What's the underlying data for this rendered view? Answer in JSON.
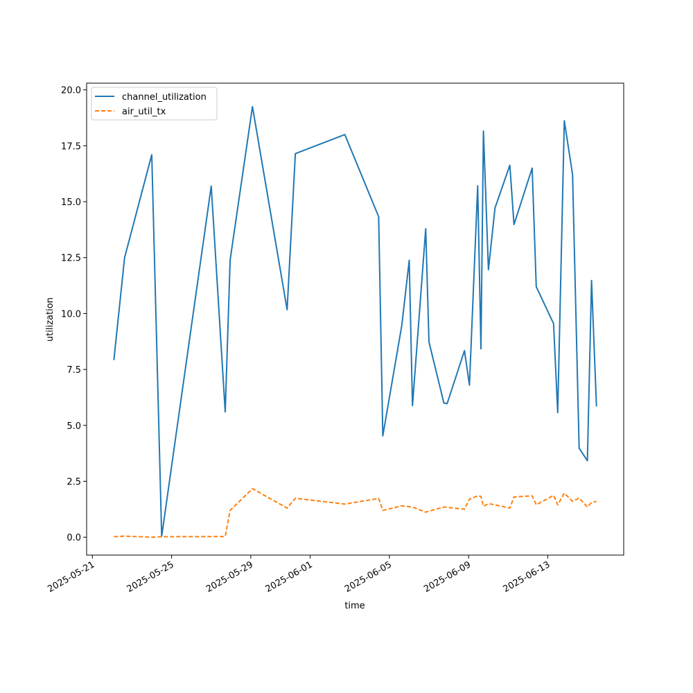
{
  "chart_data": {
    "type": "line",
    "xlabel": "time",
    "ylabel": "utilization",
    "x_axis": {
      "scale": "date",
      "range": [
        "2025-05-20T17:00",
        "2025-06-16T20:00"
      ],
      "ticks": [
        "2025-05-21",
        "2025-05-25",
        "2025-05-29",
        "2025-06-01",
        "2025-06-05",
        "2025-06-09",
        "2025-06-13"
      ]
    },
    "y_axis": {
      "range": [
        -0.8,
        20.3
      ],
      "ticks": [
        "0.0",
        "2.5",
        "5.0",
        "7.5",
        "10.0",
        "12.5",
        "15.0",
        "17.5",
        "20.0"
      ]
    },
    "grid": false,
    "legend_position": "top-left",
    "colors": {
      "channel_utilization": "#1f77b4",
      "air_util_tx": "#ff7f0e",
      "axes": "#000000",
      "background": "#ffffff"
    },
    "series": [
      {
        "name": "channel_utilization",
        "line_style": "solid",
        "points": [
          [
            "2025-05-22T02:00",
            7.92
          ],
          [
            "2025-05-22T15:00",
            12.5
          ],
          [
            "2025-05-24T00:00",
            17.1
          ],
          [
            "2025-05-24T12:00",
            0.04
          ],
          [
            "2025-05-27T00:00",
            15.7
          ],
          [
            "2025-05-27T17:00",
            5.6
          ],
          [
            "2025-05-27T23:00",
            12.4
          ],
          [
            "2025-05-29T02:00",
            19.25
          ],
          [
            "2025-05-30T20:00",
            10.17
          ],
          [
            "2025-05-31T06:00",
            17.15
          ],
          [
            "2025-06-02T18:00",
            18.0
          ],
          [
            "2025-06-04T11:00",
            14.33
          ],
          [
            "2025-06-04T16:00",
            4.53
          ],
          [
            "2025-06-05T15:00",
            9.47
          ],
          [
            "2025-06-06T00:00",
            12.38
          ],
          [
            "2025-06-06T04:00",
            5.88
          ],
          [
            "2025-06-06T20:00",
            13.79
          ],
          [
            "2025-06-07T00:00",
            8.73
          ],
          [
            "2025-06-07T18:00",
            6.0
          ],
          [
            "2025-06-07T22:00",
            5.97
          ],
          [
            "2025-06-08T19:00",
            8.34
          ],
          [
            "2025-06-09T01:00",
            6.8
          ],
          [
            "2025-06-09T11:00",
            15.71
          ],
          [
            "2025-06-09T15:00",
            8.42
          ],
          [
            "2025-06-09T18:00",
            18.16
          ],
          [
            "2025-06-10T00:00",
            11.96
          ],
          [
            "2025-06-10T08:00",
            14.72
          ],
          [
            "2025-06-11T02:00",
            16.63
          ],
          [
            "2025-06-11T07:00",
            13.98
          ],
          [
            "2025-06-12T05:00",
            16.5
          ],
          [
            "2025-06-12T10:00",
            11.2
          ],
          [
            "2025-06-13T07:00",
            9.55
          ],
          [
            "2025-06-13T12:00",
            5.57
          ],
          [
            "2025-06-13T20:00",
            18.62
          ],
          [
            "2025-06-14T06:00",
            16.21
          ],
          [
            "2025-06-14T14:00",
            3.98
          ],
          [
            "2025-06-15T00:00",
            3.42
          ],
          [
            "2025-06-15T05:00",
            11.48
          ],
          [
            "2025-06-15T11:00",
            5.85
          ]
        ]
      },
      {
        "name": "air_util_tx",
        "line_style": "dashed",
        "points": [
          [
            "2025-05-22T02:00",
            0.02
          ],
          [
            "2025-05-22T15:00",
            0.05
          ],
          [
            "2025-05-24T00:00",
            0.0
          ],
          [
            "2025-05-24T12:00",
            0.02
          ],
          [
            "2025-05-27T17:00",
            0.03
          ],
          [
            "2025-05-27T23:00",
            1.2
          ],
          [
            "2025-05-29T02:00",
            2.17
          ],
          [
            "2025-05-30T20:00",
            1.3
          ],
          [
            "2025-05-31T06:00",
            1.74
          ],
          [
            "2025-06-02T18:00",
            1.48
          ],
          [
            "2025-06-04T11:00",
            1.73
          ],
          [
            "2025-06-04T16:00",
            1.2
          ],
          [
            "2025-06-05T15:00",
            1.4
          ],
          [
            "2025-06-06T04:00",
            1.35
          ],
          [
            "2025-06-06T20:00",
            1.12
          ],
          [
            "2025-06-07T18:00",
            1.35
          ],
          [
            "2025-06-08T19:00",
            1.25
          ],
          [
            "2025-06-09T01:00",
            1.7
          ],
          [
            "2025-06-09T11:00",
            1.85
          ],
          [
            "2025-06-09T15:00",
            1.82
          ],
          [
            "2025-06-09T18:00",
            1.38
          ],
          [
            "2025-06-10T00:00",
            1.5
          ],
          [
            "2025-06-10T08:00",
            1.45
          ],
          [
            "2025-06-11T02:00",
            1.3
          ],
          [
            "2025-06-11T07:00",
            1.8
          ],
          [
            "2025-06-12T05:00",
            1.85
          ],
          [
            "2025-06-12T10:00",
            1.45
          ],
          [
            "2025-06-13T07:00",
            1.87
          ],
          [
            "2025-06-13T12:00",
            1.45
          ],
          [
            "2025-06-13T20:00",
            1.97
          ],
          [
            "2025-06-14T06:00",
            1.6
          ],
          [
            "2025-06-14T14:00",
            1.75
          ],
          [
            "2025-06-15T00:00",
            1.35
          ],
          [
            "2025-06-15T05:00",
            1.55
          ],
          [
            "2025-06-15T11:00",
            1.6
          ]
        ]
      }
    ]
  }
}
